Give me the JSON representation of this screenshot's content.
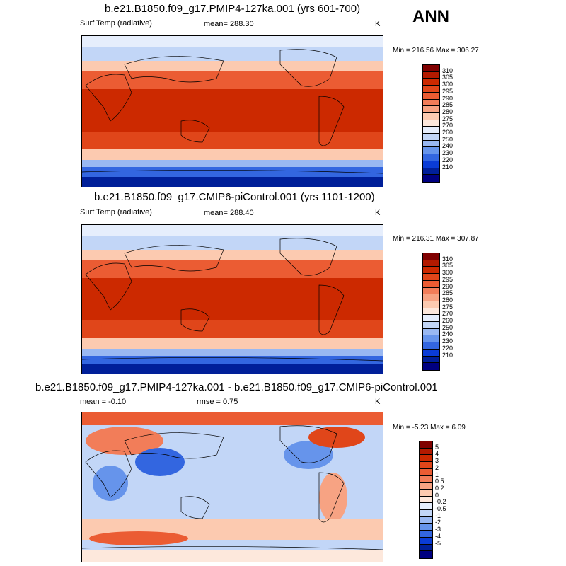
{
  "season": "ANN",
  "units": "K",
  "variable": "Surf Temp (radiative)",
  "chart_data": [
    {
      "type": "heatmap",
      "title": "b.e21.B1850.f09_g17.PMIP4-127ka.001 (yrs 601-700)",
      "variable": "Surf Temp (radiative)",
      "units": "K",
      "stat_label": "mean=",
      "stat_value": "288.30",
      "minmax": "Min = 216.56 Max = 306.27",
      "levels": [
        "310",
        "305",
        "300",
        "295",
        "290",
        "285",
        "280",
        "275",
        "270",
        "260",
        "250",
        "240",
        "230",
        "220",
        "210"
      ]
    },
    {
      "type": "heatmap",
      "title": "b.e21.B1850.f09_g17.CMIP6-piControl.001 (yrs 1101-1200)",
      "variable": "Surf Temp (radiative)",
      "units": "K",
      "stat_label": "mean=",
      "stat_value": "288.40",
      "minmax": "Min = 216.31 Max = 307.87",
      "levels": [
        "310",
        "305",
        "300",
        "295",
        "290",
        "285",
        "280",
        "275",
        "270",
        "260",
        "250",
        "240",
        "230",
        "220",
        "210"
      ]
    },
    {
      "type": "heatmap",
      "title": "b.e21.B1850.f09_g17.PMIP4-127ka.001 - b.e21.B1850.f09_g17.CMIP6-piControl.001",
      "units": "K",
      "mean_label": "mean =",
      "mean_value": "-0.10",
      "rmse_label": "rmse =",
      "rmse_value": "0.75",
      "minmax": "Min =  -5.23 Max =   6.09",
      "levels": [
        "5",
        "4",
        "3",
        "2",
        "1",
        "0.5",
        "0.2",
        "0",
        "-0.2",
        "-0.5",
        "-1",
        "-2",
        "-3",
        "-4",
        "-5"
      ]
    }
  ],
  "colors": {
    "scale": [
      "#800000",
      "#b31a00",
      "#cc2900",
      "#e0461a",
      "#eb5c33",
      "#f27d59",
      "#f7a383",
      "#fccab0",
      "#fde8dc",
      "#e6eefc",
      "#c2d6f7",
      "#99b8f2",
      "#6694eb",
      "#3366e0",
      "#0a3cd6",
      "#001f99",
      "#000080"
    ]
  }
}
